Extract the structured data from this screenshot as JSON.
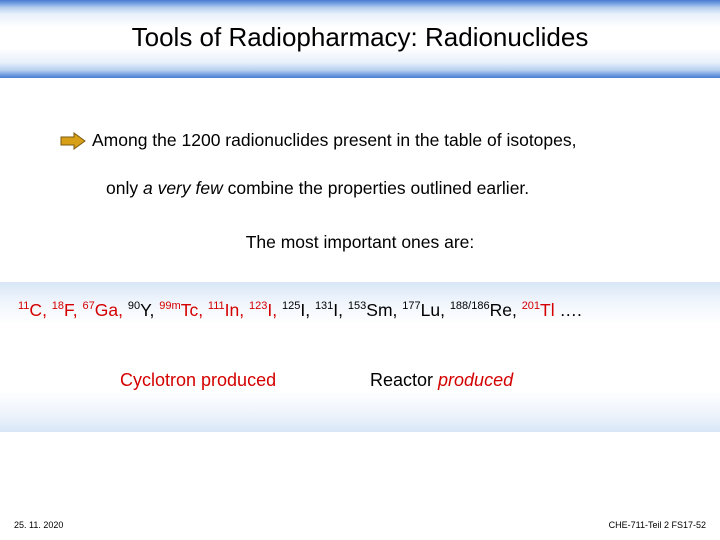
{
  "title": "Tools of Radiopharmacy: Radionuclides",
  "line1": "Among the 1200 radionuclides present in the table of isotopes,",
  "line2_a": "only ",
  "line2_b": "a very few",
  "line2_c": " combine the properties outlined earlier.",
  "line3": "The most important ones are:",
  "nuclides": [
    {
      "sup": "11",
      "sym": "C",
      "color": "red"
    },
    {
      "sup": "18",
      "sym": "F",
      "color": "red"
    },
    {
      "sup": "67",
      "sym": "Ga",
      "color": "red"
    },
    {
      "sup": "90",
      "sym": "Y",
      "color": "blk"
    },
    {
      "sup": "99m",
      "sym": "Tc",
      "color": "red"
    },
    {
      "sup": "111",
      "sym": "In",
      "color": "red"
    },
    {
      "sup": "123",
      "sym": "I",
      "color": "red"
    },
    {
      "sup": "125",
      "sym": "I",
      "color": "blk"
    },
    {
      "sup": "131",
      "sym": "I",
      "color": "blk"
    },
    {
      "sup": "153",
      "sym": "Sm",
      "color": "blk"
    },
    {
      "sup": "177",
      "sym": "Lu",
      "color": "blk"
    },
    {
      "sup": "188/186",
      "sym": "Re",
      "color": "blk"
    },
    {
      "sup": "201",
      "sym": "Tl",
      "color": "red"
    }
  ],
  "nuclide_tail": " ….",
  "cyclotron": "Cyclotron produced",
  "reactor_a": "Reactor ",
  "reactor_b": "produced",
  "footer_left": "25. 11. 2020",
  "footer_right": "CHE-711-Teil 2 FS17-52",
  "colors": {
    "red": "#d40000",
    "black": "#000000"
  }
}
